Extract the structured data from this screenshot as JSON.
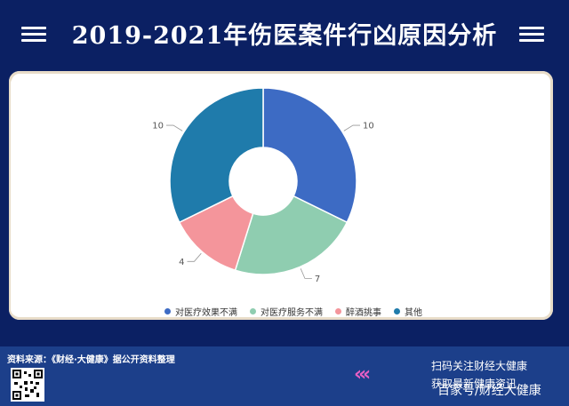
{
  "header": {
    "title": "2019-2021年伤医案件行凶原因分析"
  },
  "chart_data": {
    "type": "pie",
    "donut": true,
    "categories": [
      "对医疗效果不满",
      "对医疗服务不满",
      "醉酒挑事",
      "其他"
    ],
    "values": [
      10,
      7,
      4,
      10
    ],
    "colors": [
      "#3d6bc4",
      "#8fcdb0",
      "#f4959b",
      "#1f7bab"
    ],
    "legend_position": "bottom"
  },
  "footer": {
    "source": "资料来源：《财经·大健康》据公开资料整理",
    "promo_line1": "扫码关注财经大健康",
    "promo_line2": "获取最新健康资讯",
    "chevrons": "‹‹‹",
    "watermark": "百家号/财经大健康"
  }
}
